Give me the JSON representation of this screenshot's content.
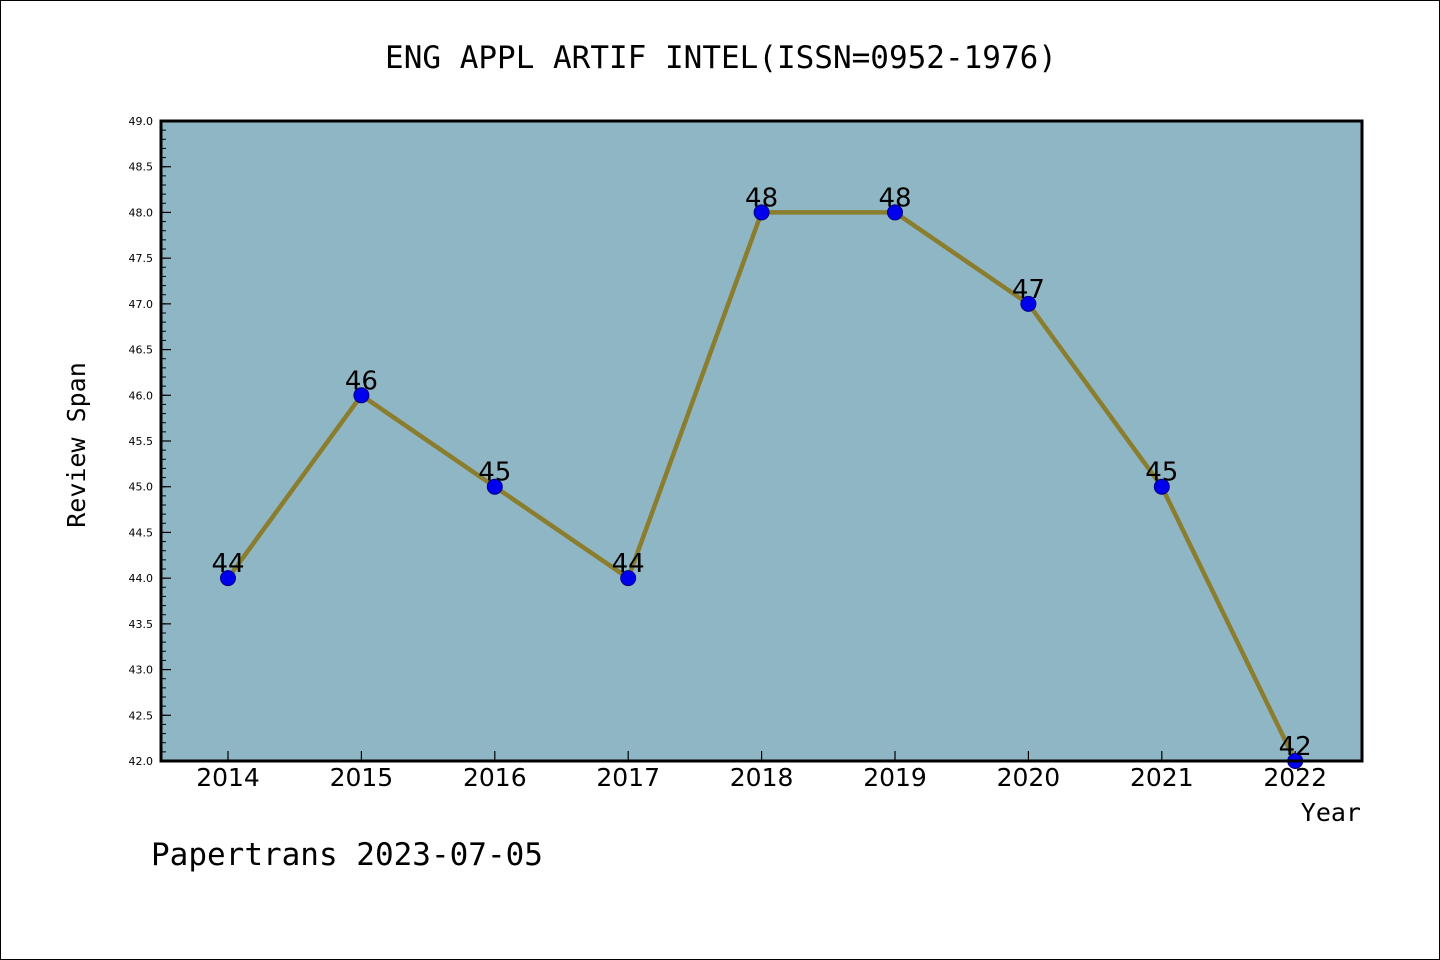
{
  "chart_data": {
    "type": "line",
    "title": "ENG APPL ARTIF INTEL(ISSN=0952-1976)",
    "xlabel": "Year",
    "ylabel": "Review Span",
    "categories": [
      "2014",
      "2015",
      "2016",
      "2017",
      "2018",
      "2019",
      "2020",
      "2021",
      "2022"
    ],
    "series": [
      {
        "values": [
          44,
          46,
          45,
          44,
          48,
          48,
          47,
          45,
          42
        ]
      }
    ],
    "data_labels": [
      "44",
      "46",
      "45",
      "44",
      "48",
      "48",
      "47",
      "45",
      "42"
    ],
    "ylim": [
      42.0,
      49.0
    ],
    "yticks": [
      "42.0",
      "42.5",
      "43.0",
      "43.5",
      "44.0",
      "44.5",
      "45.0",
      "45.5",
      "46.0",
      "46.5",
      "47.0",
      "47.5",
      "48.0",
      "48.5",
      "49.0"
    ],
    "grid": false,
    "legend": "none",
    "colors": {
      "plot_background": "#8fb6c4",
      "line": "#8b7d2e",
      "marker_fill": "#0000ee",
      "marker_edge": "#000080",
      "axes": "#000000"
    }
  },
  "footer": {
    "watermark": "Papertrans 2023-07-05"
  }
}
